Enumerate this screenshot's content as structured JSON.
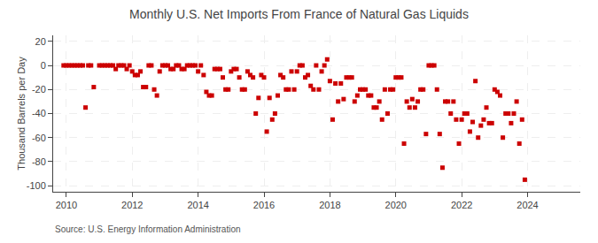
{
  "chart_data": {
    "type": "scatter",
    "title": "Monthly U.S. Net Imports From France of Natural Gas Liquids",
    "ylabel": "Thousand Barrels per Day",
    "annotations": [
      "Source: U.S. Energy Information Administration"
    ],
    "color": "#CC0000",
    "marker": "square",
    "grid": true,
    "xlim": [
      2009.6,
      2025.6
    ],
    "xticks": [
      2010,
      2012,
      2014,
      2016,
      2018,
      2020,
      2022,
      2024
    ],
    "ylim": [
      -105,
      25
    ],
    "yticks": [
      -100,
      -80,
      -60,
      -40,
      -20,
      0,
      20
    ],
    "x": [
      2009.917,
      2010.0,
      2010.083,
      2010.167,
      2010.25,
      2010.333,
      2010.417,
      2010.5,
      2010.583,
      2010.667,
      2010.75,
      2010.833,
      2011.0,
      2011.083,
      2011.167,
      2011.25,
      2011.333,
      2011.417,
      2011.5,
      2011.583,
      2011.667,
      2011.75,
      2011.833,
      2011.917,
      2012.0,
      2012.083,
      2012.167,
      2012.25,
      2012.333,
      2012.417,
      2012.5,
      2012.583,
      2012.667,
      2012.75,
      2012.833,
      2012.917,
      2013.0,
      2013.083,
      2013.167,
      2013.25,
      2013.333,
      2013.417,
      2013.5,
      2013.583,
      2013.667,
      2013.75,
      2013.833,
      2013.917,
      2014.0,
      2014.083,
      2014.167,
      2014.25,
      2014.333,
      2014.417,
      2014.5,
      2014.583,
      2014.667,
      2014.75,
      2014.833,
      2014.917,
      2015.0,
      2015.083,
      2015.167,
      2015.25,
      2015.333,
      2015.417,
      2015.5,
      2015.583,
      2015.667,
      2015.75,
      2015.833,
      2015.917,
      2016.0,
      2016.083,
      2016.167,
      2016.25,
      2016.333,
      2016.417,
      2016.5,
      2016.583,
      2016.667,
      2016.75,
      2016.833,
      2016.917,
      2017.0,
      2017.083,
      2017.167,
      2017.25,
      2017.333,
      2017.417,
      2017.5,
      2017.583,
      2017.667,
      2017.75,
      2017.833,
      2017.917,
      2018.0,
      2018.083,
      2018.167,
      2018.25,
      2018.333,
      2018.417,
      2018.5,
      2018.583,
      2018.667,
      2018.75,
      2018.833,
      2018.917,
      2019.0,
      2019.083,
      2019.167,
      2019.25,
      2019.333,
      2019.417,
      2019.5,
      2019.583,
      2019.667,
      2019.75,
      2019.833,
      2019.917,
      2020.0,
      2020.083,
      2020.167,
      2020.25,
      2020.333,
      2020.417,
      2020.5,
      2020.583,
      2020.667,
      2020.75,
      2020.833,
      2020.917,
      2021.0,
      2021.083,
      2021.167,
      2021.25,
      2021.333,
      2021.417,
      2021.5,
      2021.583,
      2021.667,
      2021.75,
      2021.833,
      2021.917,
      2022.0,
      2022.083,
      2022.167,
      2022.25,
      2022.333,
      2022.417,
      2022.5,
      2022.583,
      2022.667,
      2022.75,
      2022.833,
      2022.917,
      2023.0,
      2023.083,
      2023.167,
      2023.25,
      2023.333,
      2023.417,
      2023.5,
      2023.583,
      2023.667,
      2023.75,
      2023.833,
      2023.917
    ],
    "values": [
      0,
      0,
      0,
      0,
      0,
      0,
      0,
      0,
      -35,
      0,
      0,
      -18,
      0,
      0,
      0,
      0,
      0,
      0,
      -3,
      0,
      0,
      0,
      -3,
      0,
      -5,
      -8,
      -8,
      -5,
      -18,
      -18,
      0,
      0,
      -20,
      -25,
      -5,
      0,
      0,
      0,
      -3,
      -3,
      0,
      0,
      -3,
      -3,
      0,
      0,
      0,
      0,
      -5,
      0,
      -8,
      -22,
      -25,
      -25,
      -3,
      -3,
      -3,
      -10,
      -20,
      -20,
      -5,
      -3,
      -3,
      -10,
      -20,
      -20,
      -5,
      -8,
      -10,
      -40,
      -27,
      -8,
      -10,
      -55,
      -27,
      -45,
      -40,
      -25,
      -8,
      -10,
      -20,
      -20,
      -5,
      -20,
      -5,
      0,
      0,
      -10,
      -8,
      -17,
      -20,
      0,
      -20,
      -5,
      0,
      5,
      -13,
      -45,
      -15,
      -30,
      -15,
      -28,
      -10,
      -10,
      -10,
      -30,
      -25,
      -20,
      -20,
      -20,
      -25,
      -25,
      -35,
      -35,
      -30,
      -45,
      -20,
      -40,
      -20,
      -20,
      -10,
      -10,
      -10,
      -65,
      -30,
      -35,
      -28,
      -35,
      -30,
      -20,
      -20,
      -57,
      0,
      0,
      0,
      -20,
      -57,
      -85,
      -30,
      -30,
      -40,
      -30,
      -45,
      -65,
      -45,
      -40,
      -40,
      -55,
      -47,
      -13,
      -60,
      -50,
      -45,
      -35,
      -48,
      -48,
      -20,
      -22,
      -25,
      -60,
      -40,
      -40,
      -48,
      -40,
      -30,
      -65,
      -45,
      -95
    ]
  }
}
